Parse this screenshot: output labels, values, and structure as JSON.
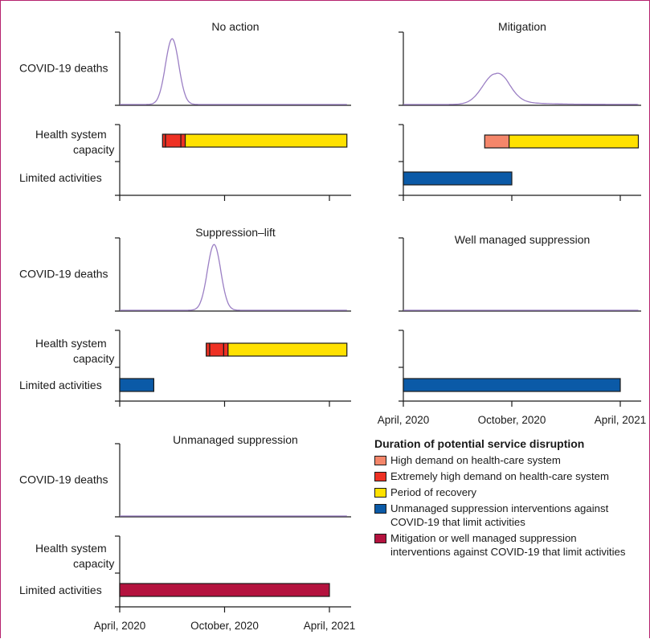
{
  "colors": {
    "high_demand": "#f4866a",
    "extremely_high": "#ee3124",
    "recovery": "#ffe100",
    "unmanaged": "#0b5aa7",
    "mitigation_suppression": "#b4123e",
    "deaths_curve": "#9b7fc4",
    "frame": "#b5226e"
  },
  "row_labels": {
    "deaths": "COVID-19 deaths",
    "capacity": [
      "Health system",
      "capacity"
    ],
    "limited": "Limited activities"
  },
  "x_tick_labels": [
    "April, 2020",
    "October, 2020",
    "April, 2021"
  ],
  "legend": {
    "title": "Duration of potential service disruption",
    "items": [
      {
        "key": "high_demand",
        "label": "High demand on health-care system"
      },
      {
        "key": "extremely_high",
        "label": "Extremely high demand on health-care system"
      },
      {
        "key": "recovery",
        "label": "Period of recovery"
      },
      {
        "key": "unmanaged",
        "label": "Unmanaged suppression interventions against COVID-19 that limit activities"
      },
      {
        "key": "mitigation_suppression",
        "label": "Mitigation or well managed suppression interventions against COVID-19 that limit activities"
      }
    ]
  },
  "chart_data": [
    {
      "type": "line",
      "title": "No action",
      "x_unit": "months since April, 2020",
      "xlim": [
        0,
        13
      ],
      "deaths_peak": {
        "month": 3.0,
        "height": 0.9,
        "width": 0.38
      },
      "bars": [
        {
          "row": "capacity",
          "segments": [
            {
              "kind": "extremely_high",
              "start": 2.45,
              "end": 2.62
            },
            {
              "kind": "extremely_high",
              "start": 2.62,
              "end": 3.5
            },
            {
              "kind": "extremely_high",
              "start": 3.5,
              "end": 3.75
            },
            {
              "kind": "recovery",
              "start": 3.75,
              "end": 13.0
            }
          ]
        }
      ]
    },
    {
      "type": "line",
      "title": "Mitigation",
      "x_unit": "months since April, 2020",
      "xlim": [
        0,
        13
      ],
      "deaths_peak": {
        "month": 5.1,
        "height": 0.42,
        "width": 0.7
      },
      "deaths_tail": 0.05,
      "bars": [
        {
          "row": "capacity",
          "segments": [
            {
              "kind": "high_demand",
              "start": 4.5,
              "end": 5.85
            },
            {
              "kind": "recovery",
              "start": 5.85,
              "end": 13.0
            }
          ]
        },
        {
          "row": "limited",
          "segments": [
            {
              "kind": "unmanaged",
              "start": 0.0,
              "end": 6.0
            }
          ]
        }
      ]
    },
    {
      "type": "line",
      "title": "Suppression–lift",
      "x_unit": "months since April, 2020",
      "xlim": [
        0,
        13
      ],
      "deaths_peak": {
        "month": 5.4,
        "height": 0.9,
        "width": 0.38
      },
      "bars": [
        {
          "row": "capacity",
          "segments": [
            {
              "kind": "extremely_high",
              "start": 4.95,
              "end": 5.15
            },
            {
              "kind": "extremely_high",
              "start": 5.15,
              "end": 5.95
            },
            {
              "kind": "extremely_high",
              "start": 5.95,
              "end": 6.2
            },
            {
              "kind": "recovery",
              "start": 6.2,
              "end": 13.0
            }
          ]
        },
        {
          "row": "limited",
          "segments": [
            {
              "kind": "unmanaged",
              "start": 0.0,
              "end": 1.95
            }
          ]
        }
      ]
    },
    {
      "type": "line",
      "title": "Well managed suppression",
      "x_unit": "months since April, 2020",
      "xlim": [
        0,
        13
      ],
      "deaths_peak": null,
      "bars": [
        {
          "row": "limited",
          "segments": [
            {
              "kind": "unmanaged",
              "start": 0.0,
              "end": 12.0
            }
          ]
        }
      ]
    },
    {
      "type": "line",
      "title": "Unmanaged suppression",
      "x_unit": "months since April, 2020",
      "xlim": [
        0,
        13
      ],
      "deaths_peak": null,
      "bars": [
        {
          "row": "limited",
          "segments": [
            {
              "kind": "mitigation_suppression",
              "start": 0.0,
              "end": 12.0
            }
          ]
        }
      ]
    }
  ]
}
